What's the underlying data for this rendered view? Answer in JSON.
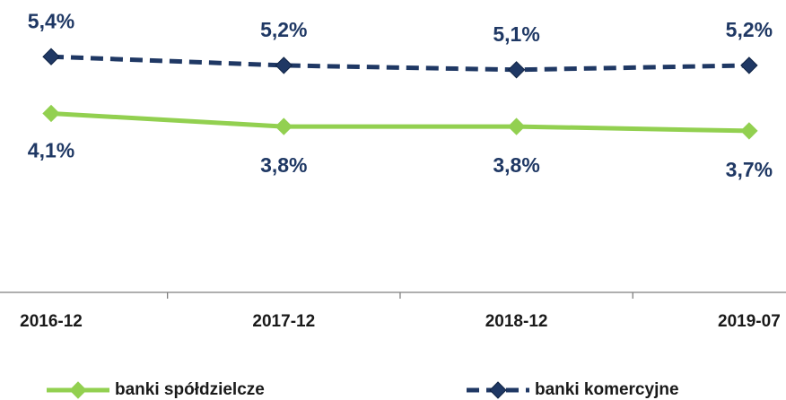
{
  "chart_data": {
    "type": "line",
    "categories": [
      "2016-12",
      "2017-12",
      "2018-12",
      "2019-07"
    ],
    "series": [
      {
        "name": "banki spółdzielcze",
        "color": "#92d050",
        "line_style": "solid",
        "values": [
          4.1,
          3.8,
          3.8,
          3.7
        ],
        "value_labels": [
          "4,1%",
          "3,8%",
          "3,8%",
          "3,7%"
        ]
      },
      {
        "name": "banki komercyjne",
        "color": "#1f3864",
        "line_style": "dashed",
        "values": [
          5.4,
          5.2,
          5.1,
          5.2
        ],
        "value_labels": [
          "5,4%",
          "5,2%",
          "5,1%",
          "5,2%"
        ]
      }
    ],
    "ylim": [
      0,
      6
    ],
    "legend": "bottom"
  }
}
